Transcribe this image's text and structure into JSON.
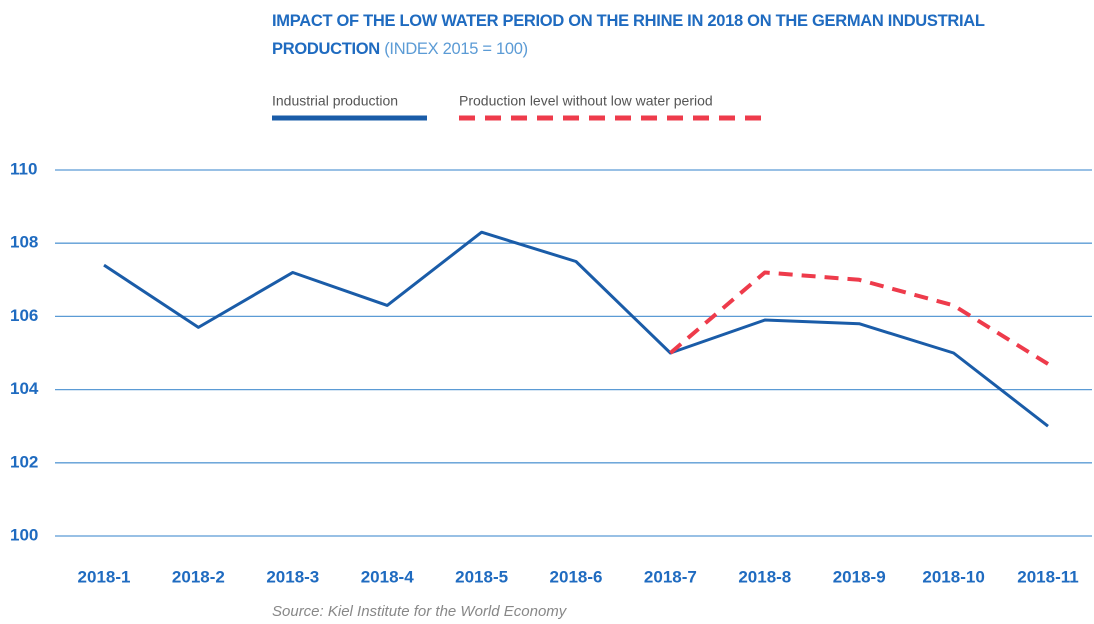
{
  "chart_data": {
    "type": "line",
    "title": "IMPACT OF THE LOW WATER PERIOD ON THE RHINE IN 2018 ON THE GERMAN INDUSTRIAL PRODUCTION",
    "subtitle": "(INDEX 2015 = 100)",
    "source": "Source: Kiel Institute for the World Economy",
    "categories": [
      "2018-1",
      "2018-2",
      "2018-3",
      "2018-4",
      "2018-5",
      "2018-6",
      "2018-7",
      "2018-8",
      "2018-9",
      "2018-10",
      "2018-11"
    ],
    "series": [
      {
        "name": "Industrial production",
        "color": "#1a5ca8",
        "dashed": false,
        "values": [
          107.4,
          105.7,
          107.2,
          106.3,
          108.3,
          107.5,
          105.0,
          105.9,
          105.8,
          105.0,
          103.0
        ]
      },
      {
        "name": "Production level without low water period",
        "color": "#ee3b4b",
        "dashed": true,
        "values": [
          null,
          null,
          null,
          null,
          null,
          null,
          105.0,
          107.2,
          107.0,
          106.3,
          104.7
        ]
      }
    ],
    "ylim": [
      100,
      110
    ],
    "yticks": [
      100,
      102,
      104,
      106,
      108,
      110
    ],
    "grid": true
  }
}
